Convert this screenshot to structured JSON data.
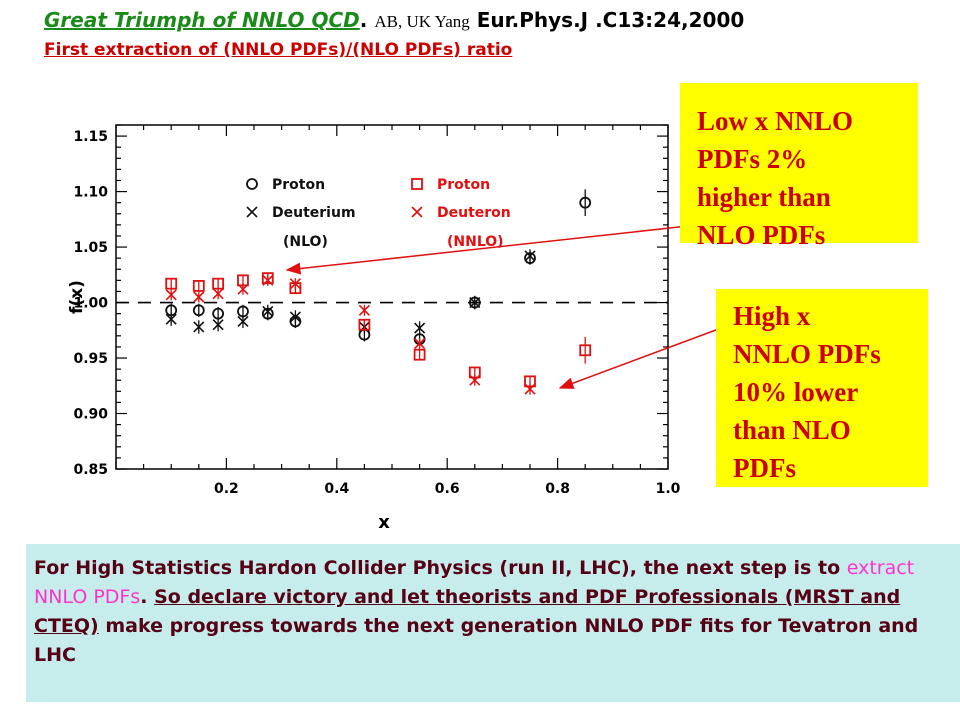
{
  "header": {
    "title": "Great Triumph of NNLO QCD",
    "dot": ". ",
    "authors": "AB, UK Yang",
    "reference": " Eur.Phys.J .C13:24,2000",
    "subtitle": "First extraction of (NNLO PDFs)/(NLO PDFs) ratio"
  },
  "callouts": {
    "low_x": [
      "Low  x NNLO",
      "PDFs 2%",
      "higher than",
      "NLO PDFs"
    ],
    "high_x": [
      "High x",
      "NNLO PDFs",
      "10% lower",
      "than NLO",
      "PDFs"
    ]
  },
  "bottom_text": {
    "part1": "For High Statistics Hardon Collider Physics (run II, LHC), the next step is to ",
    "part2": "extract NNLO PDFs",
    "part3": ". ",
    "part4": "So declare victory and let theorists and PDF Professionals (MRST and CTEQ)",
    "part5": " make progress towards  the next generation NNLO PDF fits for Tevatron and LHC"
  },
  "colors": {
    "nlo": "#111111",
    "nnlo": "#e01010",
    "callout_bg": "#ffff00",
    "callout_text": "#cc0000",
    "box_bg": "#c7ecec",
    "title_green": "#1a8a1a"
  },
  "chart_data": {
    "type": "scatter",
    "xlabel": "x",
    "ylabel": "f(x)",
    "xlim": [
      0.0,
      1.0
    ],
    "ylim": [
      0.85,
      1.16
    ],
    "xticks": [
      "0.2",
      "0.4",
      "0.6",
      "0.8",
      "1.0"
    ],
    "yticks": [
      "0.85",
      "0.90",
      "0.95",
      "1.00",
      "1.05",
      "1.10",
      "1.15"
    ],
    "reference_line": 1.0,
    "legend": [
      {
        "marker": "circle",
        "label": "Proton",
        "group": "nlo"
      },
      {
        "marker": "cross",
        "label": "Deuterium",
        "group": "nlo"
      },
      {
        "marker": "square",
        "label": "Proton",
        "group": "nnlo"
      },
      {
        "marker": "cross",
        "label": "Deuteron",
        "group": "nnlo"
      }
    ],
    "legend_group_labels": {
      "nlo": "(NLO)",
      "nnlo": "(NNLO)"
    },
    "series": [
      {
        "name": "Proton (NLO)",
        "group": "nlo",
        "marker": "circle",
        "x": [
          0.1,
          0.15,
          0.185,
          0.23,
          0.275,
          0.325,
          0.45,
          0.55,
          0.65,
          0.75,
          0.85
        ],
        "y": [
          0.993,
          0.993,
          0.99,
          0.992,
          0.99,
          0.983,
          0.971,
          0.967,
          1.0,
          1.04,
          1.09
        ]
      },
      {
        "name": "Deuterium (NLO)",
        "group": "nlo",
        "marker": "cross",
        "x": [
          0.1,
          0.15,
          0.185,
          0.23,
          0.275,
          0.325,
          0.45,
          0.55,
          0.65,
          0.75
        ],
        "y": [
          0.985,
          0.978,
          0.98,
          0.983,
          0.992,
          0.987,
          0.978,
          0.977,
          1.0,
          1.042
        ]
      },
      {
        "name": "Proton (NNLO)",
        "group": "nnlo",
        "marker": "square",
        "x": [
          0.1,
          0.15,
          0.185,
          0.23,
          0.275,
          0.325,
          0.45,
          0.55,
          0.65,
          0.75,
          0.85
        ],
        "y": [
          1.017,
          1.015,
          1.017,
          1.02,
          1.022,
          1.013,
          0.98,
          0.953,
          0.937,
          0.929,
          0.957
        ]
      },
      {
        "name": "Deuteron (NNLO)",
        "group": "nnlo",
        "marker": "cross",
        "x": [
          0.1,
          0.15,
          0.185,
          0.23,
          0.275,
          0.325,
          0.45,
          0.55,
          0.65,
          0.75
        ],
        "y": [
          1.007,
          1.005,
          1.008,
          1.012,
          1.02,
          1.017,
          0.993,
          0.963,
          0.93,
          0.922
        ]
      }
    ]
  }
}
